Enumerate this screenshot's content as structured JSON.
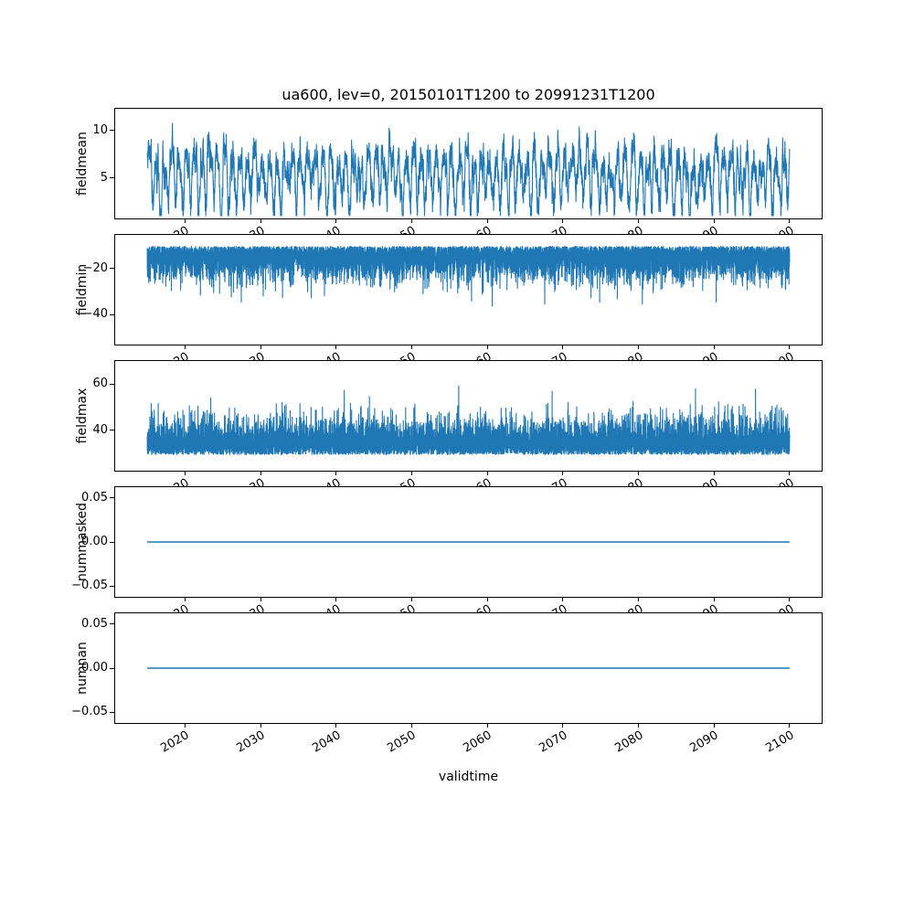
{
  "figure": {
    "background": "#ffffff",
    "axes_color": "#000000",
    "line_color": "#1f77b4"
  },
  "chart_data": {
    "type": "line",
    "title": "ua600, lev=0, 20150101T1200 to 20991231T1200",
    "xlabel": "validtime",
    "x_range": [
      2015.0,
      2100.0
    ],
    "x_ticks": [
      2020,
      2030,
      2040,
      2050,
      2060,
      2070,
      2080,
      2090,
      2100
    ],
    "x_tick_rotation_deg": 30,
    "grid": false,
    "legend": null,
    "shared_x": true,
    "n_points": 9000,
    "seed": 7,
    "subplots": [
      {
        "ylabel": "fieldmean",
        "ylim": [
          0.7,
          12.3
        ],
        "yticks": [
          {
            "v": 10,
            "label": "10"
          },
          {
            "v": 5,
            "label": "5"
          }
        ],
        "approx_range": [
          1.0,
          11.8
        ],
        "signal": {
          "kind": "seasonal",
          "base": 5.4,
          "amp1": 2.2,
          "amp2": 0.8,
          "sd": 1.2,
          "ar": 0.9,
          "min": 1.0,
          "max": 11.9
        }
      },
      {
        "ylabel": "fieldmin",
        "ylim": [
          -53,
          -5.5
        ],
        "yticks": [
          {
            "v": -20,
            "label": "−20"
          },
          {
            "v": -40,
            "label": "−40"
          }
        ],
        "approx_range": [
          -51,
          -8
        ],
        "signal": {
          "kind": "skew",
          "dir": -1,
          "base": -10.5,
          "sd": 6.5,
          "ar": 0.25,
          "spike_prob": 0.008,
          "spike_scale": 16,
          "min": -51,
          "max": -7.5
        }
      },
      {
        "ylabel": "fieldmax",
        "ylim": [
          22.5,
          70
        ],
        "yticks": [
          {
            "v": 60,
            "label": "60"
          },
          {
            "v": 40,
            "label": "40"
          }
        ],
        "approx_range": [
          25,
          68
        ],
        "signal": {
          "kind": "skew",
          "dir": 1,
          "base": 29.5,
          "sd": 7,
          "ar": 0.25,
          "spike_prob": 0.006,
          "spike_scale": 14,
          "min": 25,
          "max": 68
        }
      },
      {
        "ylabel": "nummasked",
        "ylim": [
          -0.062,
          0.062
        ],
        "yticks": [
          {
            "v": 0.05,
            "label": "0.05"
          },
          {
            "v": 0,
            "label": "0.00"
          },
          {
            "v": -0.05,
            "label": "−0.05"
          }
        ],
        "approx_range": [
          0,
          0
        ],
        "signal": {
          "kind": "constant",
          "value": 0
        }
      },
      {
        "ylabel": "numnan",
        "ylim": [
          -0.062,
          0.062
        ],
        "yticks": [
          {
            "v": 0.05,
            "label": "0.05"
          },
          {
            "v": 0,
            "label": "0.00"
          },
          {
            "v": -0.05,
            "label": "−0.05"
          }
        ],
        "approx_range": [
          0,
          0
        ],
        "signal": {
          "kind": "constant",
          "value": 0
        }
      }
    ]
  }
}
